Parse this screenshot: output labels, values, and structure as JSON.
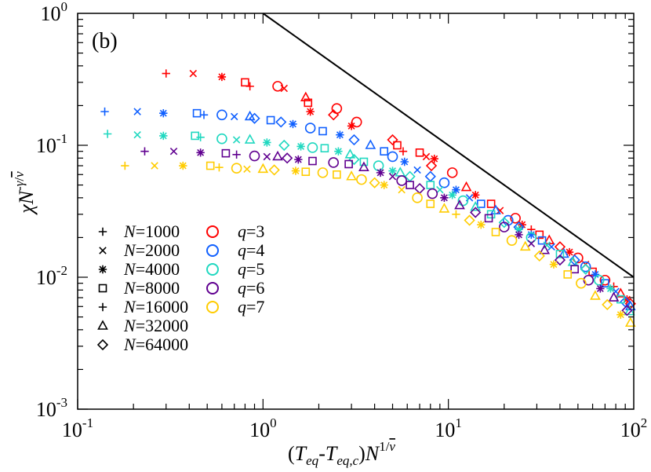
{
  "chart_data": {
    "type": "scatter",
    "panel_label": "(b)",
    "xscale": "log",
    "yscale": "log",
    "xlim": [
      0.1,
      100
    ],
    "ylim": [
      0.001,
      1
    ],
    "xlabel": "(T_eq-T_eq,c)N^(1/ν̄)",
    "ylabel": "χN^(-γ/ν̄)",
    "xticks": [
      {
        "value": 0.1,
        "base": "10",
        "exp": "-1"
      },
      {
        "value": 1,
        "base": "10",
        "exp": "0"
      },
      {
        "value": 10,
        "base": "10",
        "exp": "1"
      },
      {
        "value": 100,
        "base": "10",
        "exp": "2"
      }
    ],
    "yticks": [
      {
        "value": 0.001,
        "base": "10",
        "exp": "-3"
      },
      {
        "value": 0.01,
        "base": "10",
        "exp": "-2"
      },
      {
        "value": 0.1,
        "base": "10",
        "exp": "-1"
      },
      {
        "value": 1,
        "base": "10",
        "exp": "0"
      }
    ],
    "reference_line": {
      "x": [
        1,
        100
      ],
      "y": [
        1,
        0.01
      ]
    },
    "legend_markers": [
      {
        "marker": "plus",
        "var": "N",
        "text": "=1000"
      },
      {
        "marker": "cross",
        "var": "N",
        "text": "=2000"
      },
      {
        "marker": "star",
        "var": "N",
        "text": "=4000"
      },
      {
        "marker": "square",
        "var": "N",
        "text": "=8000"
      },
      {
        "marker": "plus",
        "var": "N",
        "text": "=16000"
      },
      {
        "marker": "triangle",
        "var": "N",
        "text": "=32000"
      },
      {
        "marker": "diamond",
        "var": "N",
        "text": "=64000"
      }
    ],
    "legend_colors": [
      {
        "color": "#ff0000",
        "var": "q",
        "text": "=3"
      },
      {
        "color": "#1060ff",
        "var": "q",
        "text": "=4"
      },
      {
        "color": "#20d8c0",
        "var": "q",
        "text": "=5"
      },
      {
        "color": "#600090",
        "var": "q",
        "text": "=6"
      },
      {
        "color": "#ffcc00",
        "var": "q",
        "text": "=7"
      }
    ],
    "series": [
      {
        "name": "q=3",
        "color": "#ff0000",
        "points": [
          [
            0.3,
            0.35,
            "plus"
          ],
          [
            0.42,
            0.35,
            "cross"
          ],
          [
            0.6,
            0.33,
            "star"
          ],
          [
            0.8,
            0.3,
            "square"
          ],
          [
            0.85,
            0.28,
            "plus"
          ],
          [
            1.2,
            0.28,
            "circle"
          ],
          [
            1.3,
            0.27,
            "cross"
          ],
          [
            1.7,
            0.23,
            "triangle"
          ],
          [
            1.75,
            0.21,
            "square"
          ],
          [
            1.8,
            0.18,
            "star"
          ],
          [
            2.5,
            0.19,
            "circle"
          ],
          [
            2.4,
            0.17,
            "diamond"
          ],
          [
            3.2,
            0.15,
            "circle"
          ],
          [
            3.0,
            0.14,
            "star"
          ],
          [
            5.0,
            0.11,
            "diamond"
          ],
          [
            5.3,
            0.1,
            "square"
          ],
          [
            5.7,
            0.09,
            "plus"
          ],
          [
            7.0,
            0.088,
            "square"
          ],
          [
            7.6,
            0.082,
            "cross"
          ],
          [
            8.4,
            0.079,
            "star"
          ],
          [
            8.1,
            0.07,
            "diamond"
          ],
          [
            10.5,
            0.062,
            "circle"
          ],
          [
            12.5,
            0.048,
            "triangle"
          ],
          [
            14.0,
            0.042,
            "star"
          ],
          [
            17.0,
            0.036,
            "square"
          ],
          [
            19.0,
            0.032,
            "cross"
          ],
          [
            23.0,
            0.028,
            "circle"
          ],
          [
            25.0,
            0.025,
            "star"
          ],
          [
            28.0,
            0.023,
            "plus"
          ],
          [
            31.0,
            0.021,
            "square"
          ],
          [
            35.0,
            0.019,
            "triangle"
          ],
          [
            40.0,
            0.017,
            "diamond"
          ],
          [
            45.0,
            0.0155,
            "star"
          ],
          [
            50.0,
            0.014,
            "circle"
          ],
          [
            55.0,
            0.0125,
            "cross"
          ],
          [
            60.0,
            0.011,
            "square"
          ],
          [
            70.0,
            0.0095,
            "circle"
          ],
          [
            78.0,
            0.0085,
            "plus"
          ],
          [
            85.0,
            0.0075,
            "triangle"
          ],
          [
            92.0,
            0.0068,
            "star"
          ],
          [
            96.0,
            0.0063,
            "diamond"
          ]
        ]
      },
      {
        "name": "q=4",
        "color": "#1060ff",
        "points": [
          [
            0.14,
            0.18,
            "plus"
          ],
          [
            0.21,
            0.18,
            "cross"
          ],
          [
            0.29,
            0.175,
            "star"
          ],
          [
            0.44,
            0.175,
            "square"
          ],
          [
            0.48,
            0.17,
            "plus"
          ],
          [
            0.6,
            0.17,
            "circle"
          ],
          [
            0.7,
            0.165,
            "cross"
          ],
          [
            0.85,
            0.165,
            "triangle"
          ],
          [
            0.9,
            0.16,
            "diamond"
          ],
          [
            1.1,
            0.155,
            "square"
          ],
          [
            1.25,
            0.15,
            "diamond"
          ],
          [
            1.45,
            0.145,
            "star"
          ],
          [
            1.8,
            0.135,
            "circle"
          ],
          [
            2.1,
            0.128,
            "square"
          ],
          [
            2.6,
            0.12,
            "star"
          ],
          [
            3.1,
            0.11,
            "diamond"
          ],
          [
            3.8,
            0.1,
            "triangle"
          ],
          [
            4.5,
            0.09,
            "square"
          ],
          [
            5.0,
            0.082,
            "circle"
          ],
          [
            5.8,
            0.075,
            "star"
          ],
          [
            6.8,
            0.065,
            "cross"
          ],
          [
            8.0,
            0.058,
            "diamond"
          ],
          [
            9.5,
            0.052,
            "circle"
          ],
          [
            11.0,
            0.046,
            "star"
          ],
          [
            13.0,
            0.04,
            "cross"
          ],
          [
            15.0,
            0.036,
            "square"
          ],
          [
            18.0,
            0.032,
            "triangle"
          ],
          [
            21.0,
            0.027,
            "circle"
          ],
          [
            24.0,
            0.024,
            "diamond"
          ],
          [
            28.0,
            0.021,
            "star"
          ],
          [
            32.0,
            0.019,
            "square"
          ],
          [
            36.0,
            0.017,
            "cross"
          ],
          [
            42.0,
            0.015,
            "triangle"
          ],
          [
            48.0,
            0.0135,
            "diamond"
          ],
          [
            55.0,
            0.012,
            "circle"
          ],
          [
            62.0,
            0.0105,
            "star"
          ],
          [
            70.0,
            0.009,
            "square"
          ],
          [
            80.0,
            0.0078,
            "cross"
          ],
          [
            90.0,
            0.0065,
            "diamond"
          ],
          [
            96.0,
            0.006,
            "triangle"
          ]
        ]
      },
      {
        "name": "q=5",
        "color": "#20d8c0",
        "points": [
          [
            0.145,
            0.122,
            "plus"
          ],
          [
            0.21,
            0.12,
            "cross"
          ],
          [
            0.29,
            0.118,
            "star"
          ],
          [
            0.43,
            0.118,
            "square"
          ],
          [
            0.46,
            0.115,
            "plus"
          ],
          [
            0.6,
            0.112,
            "circle"
          ],
          [
            0.72,
            0.11,
            "cross"
          ],
          [
            0.85,
            0.11,
            "triangle"
          ],
          [
            1.05,
            0.105,
            "star"
          ],
          [
            1.3,
            0.1,
            "diamond"
          ],
          [
            1.6,
            0.098,
            "star"
          ],
          [
            1.85,
            0.096,
            "circle"
          ],
          [
            2.15,
            0.095,
            "square"
          ],
          [
            2.55,
            0.09,
            "star"
          ],
          [
            2.95,
            0.085,
            "triangle"
          ],
          [
            3.1,
            0.078,
            "diamond"
          ],
          [
            3.5,
            0.075,
            "square"
          ],
          [
            4.2,
            0.07,
            "circle"
          ],
          [
            5.0,
            0.064,
            "star"
          ],
          [
            5.5,
            0.062,
            "triangle"
          ],
          [
            6.2,
            0.058,
            "diamond"
          ],
          [
            8.0,
            0.05,
            "square"
          ],
          [
            9.0,
            0.046,
            "cross"
          ],
          [
            10.5,
            0.042,
            "star"
          ],
          [
            12.0,
            0.038,
            "circle"
          ],
          [
            14.0,
            0.034,
            "triangle"
          ],
          [
            17.0,
            0.03,
            "square"
          ],
          [
            20.0,
            0.026,
            "diamond"
          ],
          [
            24.0,
            0.023,
            "star"
          ],
          [
            28.0,
            0.02,
            "circle"
          ],
          [
            34.0,
            0.0175,
            "cross"
          ],
          [
            40.0,
            0.015,
            "square"
          ],
          [
            47.0,
            0.013,
            "triangle"
          ],
          [
            55.0,
            0.0115,
            "diamond"
          ],
          [
            65.0,
            0.0095,
            "circle"
          ],
          [
            75.0,
            0.0082,
            "star"
          ],
          [
            85.0,
            0.0068,
            "square"
          ],
          [
            95.0,
            0.0055,
            "triangle"
          ]
        ]
      },
      {
        "name": "q=6",
        "color": "#600090",
        "points": [
          [
            0.23,
            0.09,
            "plus"
          ],
          [
            0.33,
            0.09,
            "cross"
          ],
          [
            0.46,
            0.088,
            "star"
          ],
          [
            0.63,
            0.087,
            "square"
          ],
          [
            0.72,
            0.085,
            "plus"
          ],
          [
            0.9,
            0.083,
            "circle"
          ],
          [
            1.05,
            0.082,
            "cross"
          ],
          [
            1.2,
            0.082,
            "triangle"
          ],
          [
            1.35,
            0.08,
            "diamond"
          ],
          [
            1.55,
            0.078,
            "star"
          ],
          [
            1.85,
            0.076,
            "square"
          ],
          [
            2.4,
            0.074,
            "circle"
          ],
          [
            2.9,
            0.072,
            "square"
          ],
          [
            3.5,
            0.068,
            "triangle"
          ],
          [
            4.3,
            0.062,
            "star"
          ],
          [
            5.0,
            0.058,
            "cross"
          ],
          [
            5.6,
            0.054,
            "circle"
          ],
          [
            6.2,
            0.05,
            "square"
          ],
          [
            7.0,
            0.047,
            "diamond"
          ],
          [
            8.2,
            0.043,
            "circle"
          ],
          [
            9.5,
            0.04,
            "star"
          ],
          [
            11.5,
            0.035,
            "triangle"
          ],
          [
            14.0,
            0.031,
            "diamond"
          ],
          [
            16.5,
            0.028,
            "square"
          ],
          [
            20.0,
            0.024,
            "circle"
          ],
          [
            24.0,
            0.021,
            "star"
          ],
          [
            28.0,
            0.018,
            "cross"
          ],
          [
            33.0,
            0.016,
            "triangle"
          ],
          [
            40.0,
            0.0135,
            "diamond"
          ],
          [
            48.0,
            0.0115,
            "square"
          ],
          [
            57.0,
            0.0095,
            "circle"
          ],
          [
            66.0,
            0.0082,
            "star"
          ],
          [
            78.0,
            0.007,
            "triangle"
          ],
          [
            92.0,
            0.0056,
            "diamond"
          ]
        ]
      },
      {
        "name": "q=7",
        "color": "#ffcc00",
        "points": [
          [
            0.18,
            0.07,
            "plus"
          ],
          [
            0.26,
            0.07,
            "cross"
          ],
          [
            0.37,
            0.07,
            "star"
          ],
          [
            0.52,
            0.07,
            "square"
          ],
          [
            0.58,
            0.068,
            "plus"
          ],
          [
            0.72,
            0.067,
            "circle"
          ],
          [
            0.82,
            0.066,
            "cross"
          ],
          [
            1.0,
            0.066,
            "triangle"
          ],
          [
            1.15,
            0.065,
            "diamond"
          ],
          [
            1.5,
            0.064,
            "star"
          ],
          [
            1.7,
            0.063,
            "square"
          ],
          [
            2.1,
            0.062,
            "circle"
          ],
          [
            2.5,
            0.06,
            "square"
          ],
          [
            3.0,
            0.058,
            "triangle"
          ],
          [
            3.4,
            0.055,
            "circle"
          ],
          [
            4.0,
            0.052,
            "diamond"
          ],
          [
            4.5,
            0.05,
            "star"
          ],
          [
            5.6,
            0.046,
            "cross"
          ],
          [
            6.8,
            0.04,
            "circle"
          ],
          [
            8.0,
            0.036,
            "square"
          ],
          [
            9.5,
            0.033,
            "triangle"
          ],
          [
            11.0,
            0.03,
            "plus"
          ],
          [
            13.0,
            0.027,
            "diamond"
          ],
          [
            15.0,
            0.025,
            "star"
          ],
          [
            18.0,
            0.022,
            "square"
          ],
          [
            22.0,
            0.019,
            "circle"
          ],
          [
            26.0,
            0.017,
            "triangle"
          ],
          [
            31.0,
            0.0145,
            "diamond"
          ],
          [
            37.0,
            0.0125,
            "star"
          ],
          [
            44.0,
            0.0105,
            "square"
          ],
          [
            52.0,
            0.009,
            "circle"
          ],
          [
            62.0,
            0.0072,
            "triangle"
          ],
          [
            72.0,
            0.0062,
            "diamond"
          ],
          [
            85.0,
            0.0052,
            "star"
          ],
          [
            96.0,
            0.0045,
            "triangle"
          ]
        ]
      }
    ]
  }
}
